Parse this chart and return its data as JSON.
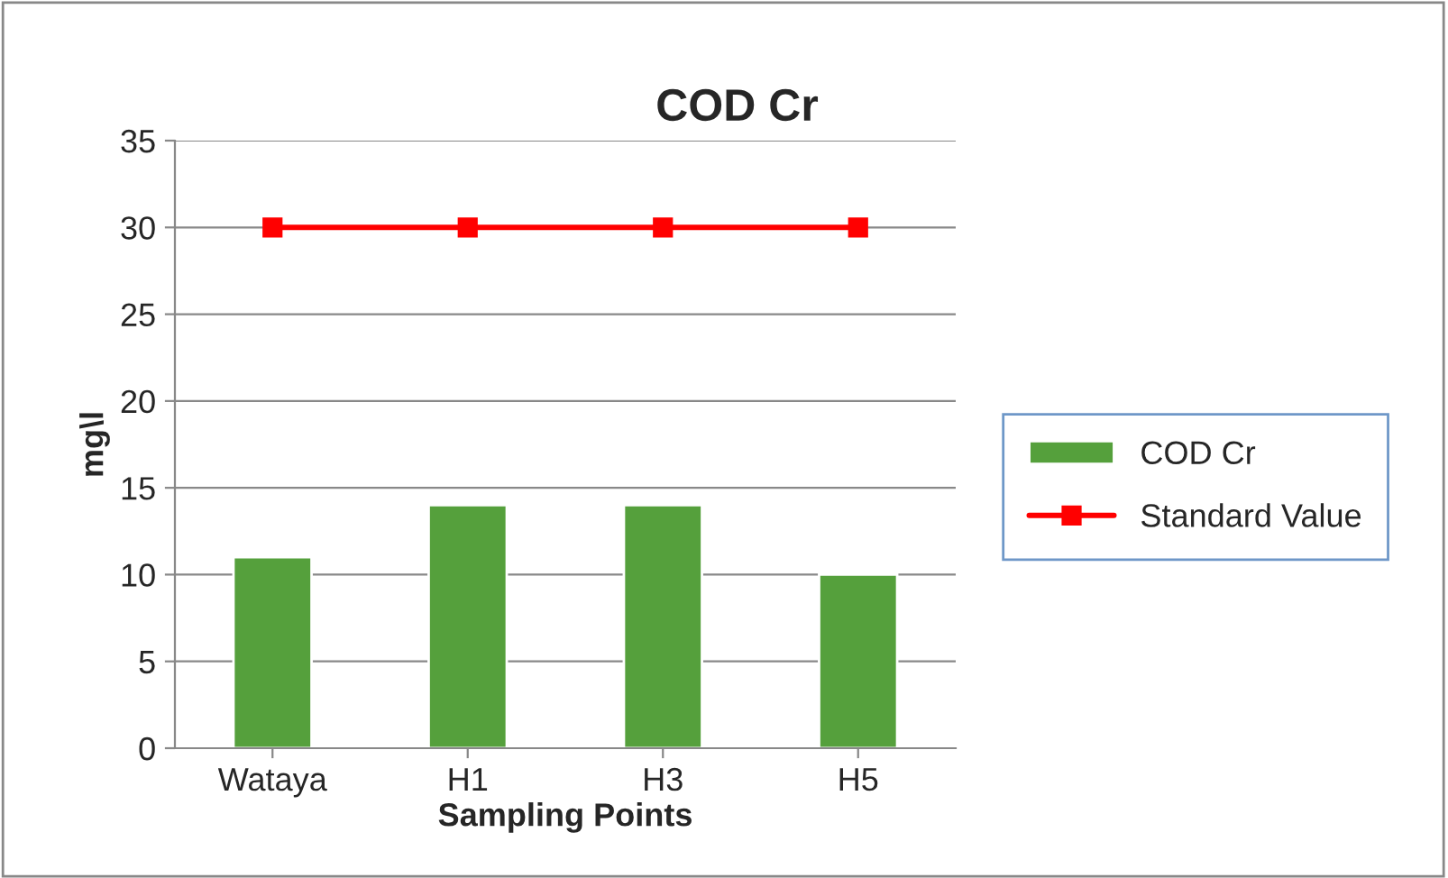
{
  "chart_data": {
    "type": "bar",
    "title": "COD Cr",
    "xlabel": "Sampling Points",
    "ylabel": "mg\\l",
    "categories": [
      "Wataya",
      "H1",
      "H3",
      "H5"
    ],
    "series": [
      {
        "name": "COD Cr",
        "color": "#55a03c",
        "values": [
          11,
          14,
          14,
          10
        ]
      },
      {
        "name": "Standard Value",
        "type": "line",
        "color": "#ff0000",
        "marker": "square",
        "line_style": "solid",
        "values": [
          30,
          30,
          30,
          30
        ]
      }
    ],
    "ylim": [
      0,
      35
    ],
    "yticks": [
      0,
      5,
      10,
      15,
      20,
      25,
      30,
      35
    ],
    "grid": "y",
    "legend": "right"
  }
}
